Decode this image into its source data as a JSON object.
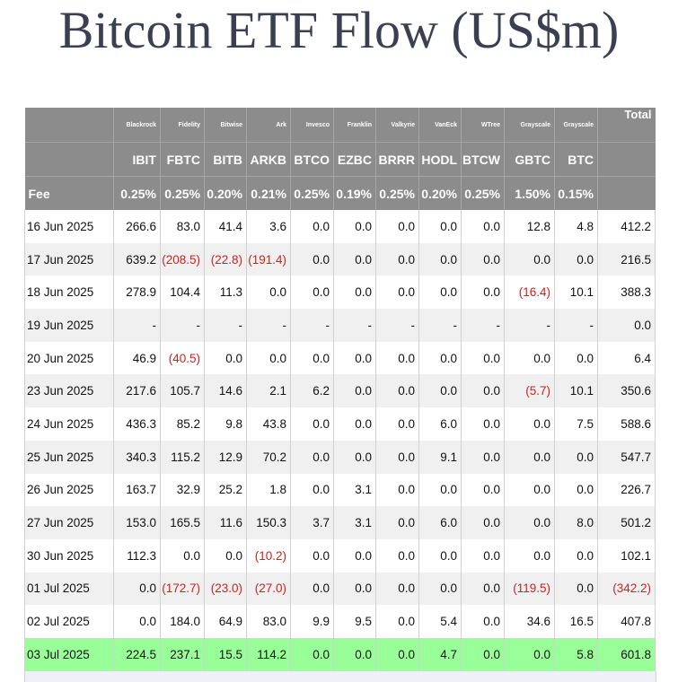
{
  "title": "Bitcoin ETF Flow (US$m)",
  "fee_label": "Fee",
  "total_label": "Total",
  "funds": [
    {
      "issuer": "Blackrock",
      "ticker": "IBIT",
      "fee": "0.25%"
    },
    {
      "issuer": "Fidelity",
      "ticker": "FBTC",
      "fee": "0.25%"
    },
    {
      "issuer": "Bitwise",
      "ticker": "BITB",
      "fee": "0.20%"
    },
    {
      "issuer": "Ark",
      "ticker": "ARKB",
      "fee": "0.21%"
    },
    {
      "issuer": "Invesco",
      "ticker": "BTCO",
      "fee": "0.25%"
    },
    {
      "issuer": "Franklin",
      "ticker": "EZBC",
      "fee": "0.19%"
    },
    {
      "issuer": "Valkyrie",
      "ticker": "BRRR",
      "fee": "0.25%"
    },
    {
      "issuer": "VanEck",
      "ticker": "HODL",
      "fee": "0.20%"
    },
    {
      "issuer": "WTree",
      "ticker": "BTCW",
      "fee": "0.25%"
    },
    {
      "issuer": "Grayscale",
      "ticker": "GBTC",
      "fee": "1.50%"
    },
    {
      "issuer": "Grayscale",
      "ticker": "BTC",
      "fee": "0.15%"
    }
  ],
  "rows": [
    {
      "date": "16 Jun 2025",
      "cells": [
        "266.6",
        "83.0",
        "41.4",
        "3.6",
        "0.0",
        "0.0",
        "0.0",
        "0.0",
        "0.0",
        "12.8",
        "4.8"
      ],
      "total": "412.2"
    },
    {
      "date": "17 Jun 2025",
      "cells": [
        "639.2",
        "(208.5)",
        "(22.8)",
        "(191.4)",
        "0.0",
        "0.0",
        "0.0",
        "0.0",
        "0.0",
        "0.0",
        "0.0"
      ],
      "total": "216.5"
    },
    {
      "date": "18 Jun 2025",
      "cells": [
        "278.9",
        "104.4",
        "11.3",
        "0.0",
        "0.0",
        "0.0",
        "0.0",
        "0.0",
        "0.0",
        "(16.4)",
        "10.1"
      ],
      "total": "388.3"
    },
    {
      "date": "19 Jun 2025",
      "cells": [
        "-",
        "-",
        "-",
        "-",
        "-",
        "-",
        "-",
        "-",
        "-",
        "-",
        "-"
      ],
      "total": "0.0"
    },
    {
      "date": "20 Jun 2025",
      "cells": [
        "46.9",
        "(40.5)",
        "0.0",
        "0.0",
        "0.0",
        "0.0",
        "0.0",
        "0.0",
        "0.0",
        "0.0",
        "0.0"
      ],
      "total": "6.4"
    },
    {
      "date": "23 Jun 2025",
      "cells": [
        "217.6",
        "105.7",
        "14.6",
        "2.1",
        "6.2",
        "0.0",
        "0.0",
        "0.0",
        "0.0",
        "(5.7)",
        "10.1"
      ],
      "total": "350.6"
    },
    {
      "date": "24 Jun 2025",
      "cells": [
        "436.3",
        "85.2",
        "9.8",
        "43.8",
        "0.0",
        "0.0",
        "0.0",
        "6.0",
        "0.0",
        "0.0",
        "7.5"
      ],
      "total": "588.6"
    },
    {
      "date": "25 Jun 2025",
      "cells": [
        "340.3",
        "115.2",
        "12.9",
        "70.2",
        "0.0",
        "0.0",
        "0.0",
        "9.1",
        "0.0",
        "0.0",
        "0.0"
      ],
      "total": "547.7"
    },
    {
      "date": "26 Jun 2025",
      "cells": [
        "163.7",
        "32.9",
        "25.2",
        "1.8",
        "0.0",
        "3.1",
        "0.0",
        "0.0",
        "0.0",
        "0.0",
        "0.0"
      ],
      "total": "226.7"
    },
    {
      "date": "27 Jun 2025",
      "cells": [
        "153.0",
        "165.5",
        "11.6",
        "150.3",
        "3.7",
        "3.1",
        "0.0",
        "6.0",
        "0.0",
        "0.0",
        "8.0"
      ],
      "total": "501.2"
    },
    {
      "date": "30 Jun 2025",
      "cells": [
        "112.3",
        "0.0",
        "0.0",
        "(10.2)",
        "0.0",
        "0.0",
        "0.0",
        "0.0",
        "0.0",
        "0.0",
        "0.0"
      ],
      "total": "102.1"
    },
    {
      "date": "01 Jul 2025",
      "cells": [
        "0.0",
        "(172.7)",
        "(23.0)",
        "(27.0)",
        "0.0",
        "0.0",
        "0.0",
        "0.0",
        "0.0",
        "(119.5)",
        "0.0"
      ],
      "total": "(342.2)"
    },
    {
      "date": "02 Jul 2025",
      "cells": [
        "0.0",
        "184.0",
        "64.9",
        "83.0",
        "9.9",
        "9.5",
        "0.0",
        "5.4",
        "0.0",
        "34.6",
        "16.5"
      ],
      "total": "407.8"
    },
    {
      "date": "03 Jul 2025",
      "cells": [
        "224.5",
        "237.1",
        "15.5",
        "114.2",
        "0.0",
        "0.0",
        "0.0",
        "4.7",
        "0.0",
        "0.0",
        "5.8"
      ],
      "total": "601.8",
      "highlight": true
    }
  ],
  "colors": {
    "header_bg": "#8c8c8c",
    "negative": "#d12020",
    "highlight_row": "#99ff99",
    "title": "#3b3f52"
  }
}
